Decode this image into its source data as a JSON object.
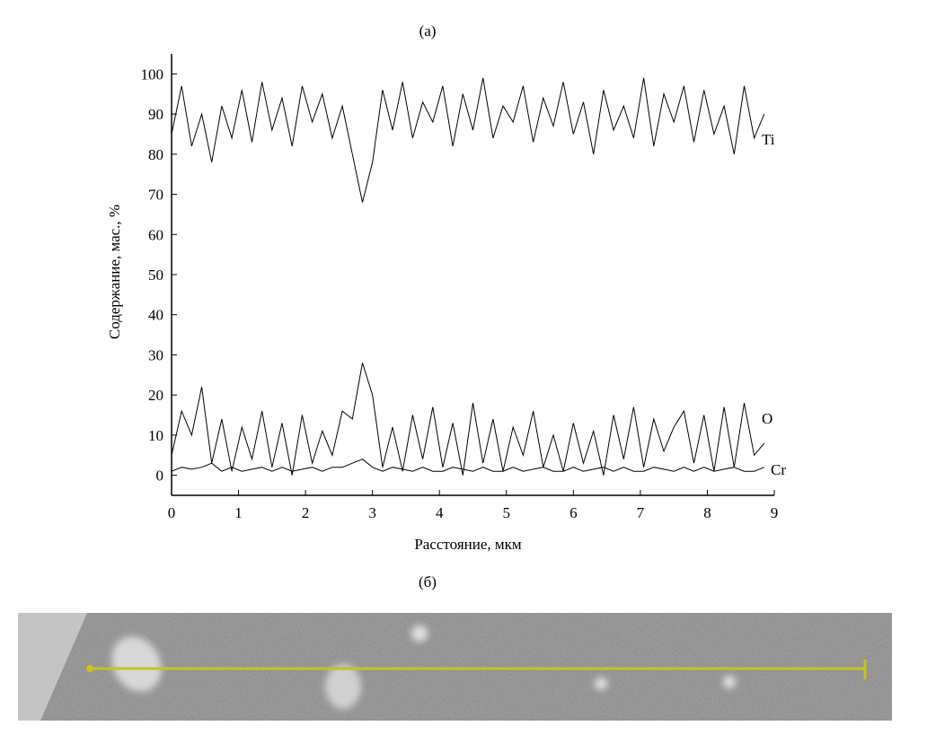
{
  "chart_data": {
    "type": "line",
    "top_label": "(а)",
    "bottom_label": "(б)",
    "x_label": "Расстояние, мкм",
    "y_label": "Содержание, мас., %",
    "xlim": [
      0,
      9
    ],
    "xticks": [
      0,
      1,
      2,
      3,
      4,
      5,
      6,
      7,
      8,
      9
    ],
    "ylim": [
      -5,
      105
    ],
    "yticks": [
      0,
      10,
      20,
      30,
      40,
      50,
      60,
      70,
      80,
      90,
      100
    ],
    "x": [
      0,
      0.15,
      0.3,
      0.45,
      0.6,
      0.75,
      0.9,
      1.05,
      1.2,
      1.35,
      1.5,
      1.65,
      1.8,
      1.95,
      2.1,
      2.25,
      2.4,
      2.55,
      2.7,
      2.85,
      3,
      3.15,
      3.3,
      3.45,
      3.6,
      3.75,
      3.9,
      4.05,
      4.2,
      4.35,
      4.5,
      4.65,
      4.8,
      4.95,
      5.1,
      5.25,
      5.4,
      5.55,
      5.7,
      5.85,
      6,
      6.15,
      6.3,
      6.45,
      6.6,
      6.75,
      6.9,
      7.05,
      7.2,
      7.35,
      7.5,
      7.65,
      7.8,
      7.95,
      8.1,
      8.25,
      8.4,
      8.55,
      8.7,
      8.85
    ],
    "series": [
      {
        "name": "Ti",
        "color": "#000000",
        "values": [
          85,
          97,
          82,
          90,
          78,
          92,
          84,
          96,
          83,
          98,
          86,
          94,
          82,
          97,
          88,
          95,
          84,
          92,
          80,
          68,
          78,
          96,
          86,
          98,
          84,
          93,
          88,
          97,
          82,
          95,
          86,
          99,
          84,
          92,
          88,
          97,
          83,
          94,
          87,
          98,
          85,
          93,
          80,
          96,
          86,
          92,
          84,
          99,
          82,
          95,
          88,
          97,
          83,
          96,
          85,
          92,
          80,
          97,
          84,
          90
        ]
      },
      {
        "name": "O",
        "color": "#000000",
        "values": [
          5,
          16,
          10,
          22,
          3,
          14,
          1,
          12,
          4,
          16,
          2,
          13,
          0,
          15,
          3,
          11,
          5,
          16,
          14,
          28,
          20,
          2,
          12,
          1,
          15,
          4,
          17,
          2,
          13,
          0,
          18,
          3,
          14,
          1,
          12,
          5,
          16,
          2,
          10,
          1,
          13,
          3,
          11,
          0,
          15,
          4,
          17,
          2,
          14,
          6,
          12,
          16,
          3,
          15,
          1,
          17,
          2,
          18,
          5,
          8
        ]
      },
      {
        "name": "Cr",
        "color": "#000000",
        "values": [
          1,
          2,
          1.5,
          2,
          3,
          1,
          2,
          1,
          1.5,
          2,
          1,
          2,
          1,
          1.5,
          2,
          1,
          2,
          2,
          3,
          4,
          2,
          1,
          2,
          1.5,
          1,
          2,
          1,
          1,
          2,
          1.5,
          1,
          2,
          1,
          1,
          2,
          1,
          1.5,
          2,
          1,
          1,
          2,
          1,
          1.5,
          2,
          1,
          2,
          1,
          1,
          2,
          1.5,
          1,
          2,
          1,
          2,
          1,
          1.5,
          2,
          1,
          1,
          2
        ]
      }
    ]
  }
}
